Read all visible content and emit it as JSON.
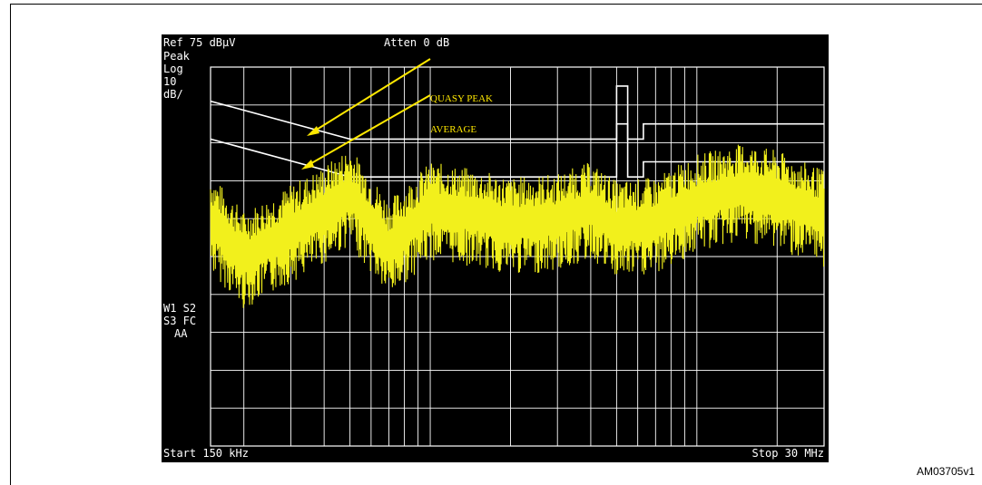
{
  "chart_data": {
    "type": "line",
    "title": "",
    "ref_level": "Ref 75 dBµV",
    "attenuation": "Atten 0 dB",
    "detector_mode": [
      "Peak",
      "Log",
      "10",
      "dB/"
    ],
    "side_labels": [
      "W1 S2",
      "S3 FC",
      "AA"
    ],
    "start_label": "Start 150 kHz",
    "stop_label": "Stop 30 MHz",
    "x_scale": "log",
    "x_range_mhz": [
      0.15,
      30
    ],
    "ref_dbuv": 75,
    "db_per_div": 10,
    "grid": true,
    "colors": {
      "background": "#000000",
      "grid": "#ffffff",
      "limit_lines": "#ffffff",
      "trace": "#f2f01c",
      "annotation": "#ffe800"
    },
    "annotations": [
      "QUASY PEAK",
      "AVERAGE"
    ],
    "series": [
      {
        "name": "QUASY PEAK",
        "x": [
          0.15,
          0.5,
          0.5,
          5,
          5,
          5.5,
          5.5,
          6.3,
          6.3,
          30
        ],
        "y": [
          66,
          56,
          56,
          56,
          70,
          70,
          56,
          56,
          60,
          60
        ]
      },
      {
        "name": "AVERAGE",
        "x": [
          0.15,
          0.5,
          0.5,
          5,
          5,
          5.5,
          5.5,
          6.3,
          6.3,
          30
        ],
        "y": [
          56,
          46,
          46,
          46,
          60,
          60,
          46,
          46,
          50,
          50
        ]
      },
      {
        "name": "",
        "x": [
          0.15,
          0.2,
          0.3,
          0.4,
          0.5,
          0.7,
          1.0,
          1.5,
          2,
          3,
          4,
          5,
          7,
          10,
          15,
          20,
          25,
          30
        ],
        "y": [
          35,
          25,
          32,
          37,
          42,
          28,
          38,
          36,
          34,
          35,
          38,
          33,
          34,
          40,
          43,
          41,
          38,
          36
        ]
      }
    ]
  },
  "figure_id": "AM03705v1"
}
